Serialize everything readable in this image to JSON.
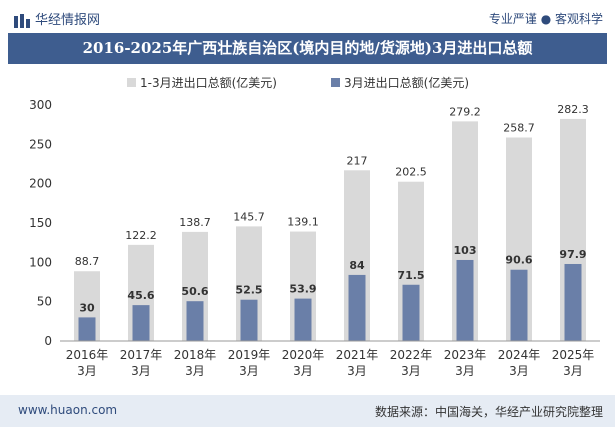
{
  "header": {
    "site_name": "华经情报网",
    "slogan": "专业严谨 ● 客观科学"
  },
  "footer": {
    "url": "www.huaon.com",
    "source": "数据来源：中国海关，华经产业研究院整理"
  },
  "colors": {
    "title_bg": "#3e5d8f",
    "series1": "#d9d9d9",
    "series2": "#6a7fa8",
    "footer_bg": "#e6ecf4"
  },
  "chart_data": {
    "type": "bar",
    "title": "2016-2025年广西壮族自治区(境内目的地/货源地)3月进出口总额",
    "categories": [
      "2016年3月",
      "2017年3月",
      "2018年3月",
      "2019年3月",
      "2020年3月",
      "2021年3月",
      "2022年3月",
      "2023年3月",
      "2024年3月",
      "2025年3月"
    ],
    "series": [
      {
        "name": "1-3月进出口总额(亿美元)",
        "values": [
          88.7,
          122.2,
          138.7,
          145.7,
          139.1,
          217,
          202.5,
          279.2,
          258.7,
          282.3
        ],
        "labels": [
          "88.7",
          "122.2",
          "138.7",
          "145.7",
          "139.1",
          "217",
          "202.5",
          "279.2",
          "258.7",
          "282.3"
        ]
      },
      {
        "name": "3月进出口总额(亿美元)",
        "values": [
          30,
          45.6,
          50.6,
          52.5,
          53.9,
          84,
          71.5,
          103,
          90.6,
          97.9
        ],
        "labels": [
          "30",
          "45.6",
          "50.6",
          "52.5",
          "53.9",
          "84",
          "71.5",
          "103",
          "90.6",
          "97.9"
        ]
      }
    ],
    "yticks": [
      0,
      50,
      100,
      150,
      200,
      250,
      300
    ],
    "ylim": [
      0,
      300
    ],
    "legend_position": "top",
    "grid": false
  }
}
